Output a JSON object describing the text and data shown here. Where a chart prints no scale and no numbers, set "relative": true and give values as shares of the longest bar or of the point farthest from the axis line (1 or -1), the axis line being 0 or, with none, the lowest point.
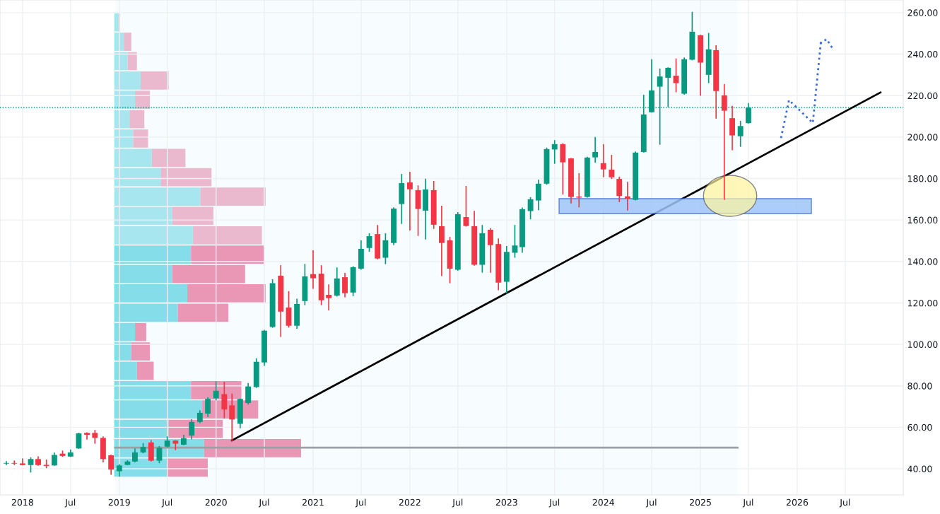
{
  "chart_data": [
    {
      "type": "candlestick",
      "x": [
        "2017-11",
        "2017-12",
        "2018-01",
        "2018-02",
        "2018-03",
        "2018-04",
        "2018-05",
        "2018-06",
        "2018-07",
        "2018-08",
        "2018-09",
        "2018-10",
        "2018-11",
        "2018-12",
        "2019-01",
        "2019-02",
        "2019-03",
        "2019-04",
        "2019-05",
        "2019-06",
        "2019-07",
        "2019-08",
        "2019-09",
        "2019-10",
        "2019-11",
        "2019-12",
        "2020-01",
        "2020-02",
        "2020-03",
        "2020-04",
        "2020-05",
        "2020-06",
        "2020-07",
        "2020-08",
        "2020-09",
        "2020-10",
        "2020-11",
        "2020-12",
        "2021-01",
        "2021-02",
        "2021-03",
        "2021-04",
        "2021-05",
        "2021-06",
        "2021-07",
        "2021-08",
        "2021-09",
        "2021-10",
        "2021-11",
        "2021-12",
        "2022-01",
        "2022-02",
        "2022-03",
        "2022-04",
        "2022-05",
        "2022-06",
        "2022-07",
        "2022-08",
        "2022-09",
        "2022-10",
        "2022-11",
        "2022-12",
        "2023-01",
        "2023-02",
        "2023-03",
        "2023-04",
        "2023-05",
        "2023-06",
        "2023-07",
        "2023-08",
        "2023-09",
        "2023-10",
        "2023-11",
        "2023-12",
        "2024-01",
        "2024-02",
        "2024-03",
        "2024-04",
        "2024-05",
        "2024-06",
        "2024-07",
        "2024-08",
        "2024-09",
        "2024-10",
        "2024-11",
        "2024-12",
        "2025-01",
        "2025-02",
        "2025-03",
        "2025-04",
        "2025-05",
        "2025-06",
        "2025-07"
      ],
      "ohlc": [
        [
          42.5,
          43.7,
          41.8,
          42.8
        ],
        [
          42.8,
          44.0,
          41.8,
          42.5
        ],
        [
          42.6,
          45.0,
          41.6,
          41.8
        ],
        [
          41.8,
          45.5,
          38.2,
          44.7
        ],
        [
          44.7,
          46.0,
          41.5,
          41.8
        ],
        [
          41.9,
          44.5,
          40.3,
          41.4
        ],
        [
          41.6,
          47.9,
          41.5,
          46.7
        ],
        [
          47.3,
          48.8,
          45.8,
          46.2
        ],
        [
          45.9,
          49.3,
          45.7,
          47.9
        ],
        [
          49.8,
          57.4,
          49.6,
          57.1
        ],
        [
          57.3,
          57.6,
          54.1,
          56.4
        ],
        [
          57.3,
          58.7,
          52.1,
          54.9
        ],
        [
          54.9,
          55.6,
          43.1,
          44.7
        ],
        [
          46.5,
          46.8,
          37.1,
          39.6
        ],
        [
          38.8,
          42.2,
          36.2,
          41.6
        ],
        [
          41.9,
          44.1,
          41.7,
          43.5
        ],
        [
          43.5,
          49.8,
          43.1,
          47.9
        ],
        [
          47.9,
          52.4,
          47.5,
          50.5
        ],
        [
          52.7,
          53.8,
          43.5,
          43.9
        ],
        [
          43.9,
          51.0,
          42.7,
          50.1
        ],
        [
          50.7,
          55.6,
          50.3,
          53.6
        ],
        [
          53.6,
          53.8,
          49.0,
          52.1
        ],
        [
          51.6,
          56.4,
          51.4,
          54.7
        ],
        [
          56.0,
          63.9,
          54.2,
          62.6
        ],
        [
          62.6,
          68.2,
          62.0,
          67.0
        ],
        [
          66.6,
          74.5,
          65.0,
          73.7
        ],
        [
          74.0,
          82.2,
          73.0,
          77.6
        ],
        [
          76.0,
          82.0,
          64.3,
          68.6
        ],
        [
          70.6,
          76.3,
          53.3,
          63.8
        ],
        [
          61.7,
          73.9,
          59.5,
          73.7
        ],
        [
          71.7,
          81.4,
          71.0,
          79.7
        ],
        [
          79.4,
          93.3,
          79.0,
          91.6
        ],
        [
          91.3,
          107.0,
          89.6,
          106.6
        ],
        [
          108.4,
          131.4,
          108.0,
          129.5
        ],
        [
          133.1,
          138.2,
          103.6,
          115.8
        ],
        [
          117.8,
          125.7,
          108.1,
          109.0
        ],
        [
          109.0,
          122.0,
          107.5,
          119.5
        ],
        [
          120.9,
          138.8,
          118.9,
          132.8
        ],
        [
          133.9,
          145.4,
          126.8,
          131.9
        ],
        [
          134.1,
          138.2,
          118.9,
          121.3
        ],
        [
          123.9,
          128.9,
          116.4,
          122.3
        ],
        [
          123.5,
          137.1,
          123.1,
          131.8
        ],
        [
          132.4,
          134.5,
          122.7,
          124.7
        ],
        [
          125.0,
          137.7,
          123.3,
          137.2
        ],
        [
          136.5,
          150.2,
          136.0,
          146.1
        ],
        [
          146.5,
          153.6,
          144.7,
          152.2
        ],
        [
          153.2,
          157.6,
          141.0,
          141.4
        ],
        [
          141.8,
          153.6,
          138.7,
          150.2
        ],
        [
          148.9,
          166.1,
          147.9,
          165.5
        ],
        [
          167.7,
          182.2,
          158.1,
          177.8
        ],
        [
          178.1,
          183.2,
          154.9,
          174.8
        ],
        [
          174.4,
          176.7,
          152.3,
          165.3
        ],
        [
          164.5,
          179.9,
          150.6,
          174.7
        ],
        [
          174.4,
          178.8,
          155.7,
          157.7
        ],
        [
          157.0,
          166.9,
          132.9,
          148.9
        ],
        [
          150.2,
          151.8,
          129.5,
          136.5
        ],
        [
          136.0,
          163.8,
          135.5,
          162.8
        ],
        [
          161.4,
          176.4,
          156.8,
          157.1
        ],
        [
          157.0,
          164.4,
          138.0,
          138.4
        ],
        [
          138.4,
          157.6,
          134.6,
          153.6
        ],
        [
          155.3,
          156.0,
          134.6,
          147.9
        ],
        [
          148.4,
          151.1,
          126.1,
          129.8
        ],
        [
          130.2,
          147.4,
          124.6,
          144.6
        ],
        [
          144.2,
          157.6,
          141.8,
          147.7
        ],
        [
          146.9,
          166.0,
          144.2,
          165.2
        ],
        [
          164.3,
          171.0,
          160.3,
          170.0
        ],
        [
          169.4,
          179.5,
          164.7,
          177.5
        ],
        [
          177.5,
          194.9,
          177.0,
          194.2
        ],
        [
          194.0,
          198.5,
          187.1,
          196.6
        ],
        [
          196.6,
          197.0,
          172.3,
          187.8
        ],
        [
          189.7,
          189.9,
          168.0,
          171.1
        ],
        [
          171.3,
          182.6,
          166.1,
          170.8
        ],
        [
          171.1,
          190.5,
          170.8,
          190.1
        ],
        [
          190.2,
          200.0,
          187.7,
          192.8
        ],
        [
          187.4,
          196.6,
          180.6,
          184.4
        ],
        [
          184.3,
          191.4,
          179.8,
          180.6
        ],
        [
          179.8,
          180.9,
          168.6,
          171.6
        ],
        [
          171.4,
          178.4,
          164.6,
          170.3
        ],
        [
          169.7,
          193.0,
          169.4,
          192.5
        ],
        [
          192.8,
          220.4,
          192.5,
          210.9
        ],
        [
          212.0,
          237.5,
          211.8,
          222.5
        ],
        [
          224.3,
          233.0,
          196.3,
          229.2
        ],
        [
          228.6,
          233.6,
          214.4,
          233.4
        ],
        [
          229.6,
          237.9,
          221.6,
          226.0
        ],
        [
          220.9,
          238.4,
          220.4,
          237.5
        ],
        [
          237.3,
          260.4,
          237.0,
          250.8
        ],
        [
          249.1,
          249.3,
          219.9,
          235.9
        ],
        [
          230.0,
          250.2,
          226.0,
          242.3
        ],
        [
          241.9,
          244.3,
          208.9,
          222.2
        ],
        [
          220.1,
          225.6,
          169.7,
          212.7
        ],
        [
          209.1,
          215.0,
          193.6,
          200.8
        ],
        [
          200.4,
          207.8,
          195.3,
          205.3
        ],
        [
          206.7,
          216.4,
          206.5,
          214.2
        ]
      ],
      "colors": [
        "#089981",
        "#f23645",
        "#f23645",
        "#089981",
        "#f23645",
        "#f23645",
        "#089981",
        "#f23645",
        "#089981",
        "#089981",
        "#f23645",
        "#f23645",
        "#f23645",
        "#f23645",
        "#089981",
        "#089981",
        "#089981",
        "#089981",
        "#f23645",
        "#089981",
        "#089981",
        "#f23645",
        "#089981",
        "#089981",
        "#089981",
        "#089981",
        "#089981",
        "#f23645",
        "#f23645",
        "#089981",
        "#089981",
        "#089981",
        "#089981",
        "#089981",
        "#f23645",
        "#f23645",
        "#089981",
        "#089981",
        "#f23645",
        "#f23645",
        "#f23645",
        "#089981",
        "#f23645",
        "#089981",
        "#089981",
        "#089981",
        "#f23645",
        "#089981",
        "#089981",
        "#089981",
        "#f23645",
        "#f23645",
        "#089981",
        "#f23645",
        "#f23645",
        "#f23645",
        "#089981",
        "#f23645",
        "#f23645",
        "#089981",
        "#f23645",
        "#f23645",
        "#089981",
        "#089981",
        "#089981",
        "#089981",
        "#089981",
        "#089981",
        "#089981",
        "#f23645",
        "#f23645",
        "#f23645",
        "#089981",
        "#089981",
        "#f23645",
        "#f23645",
        "#f23645",
        "#f23645",
        "#089981",
        "#089981",
        "#089981",
        "#089981",
        "#089981",
        "#f23645",
        "#089981",
        "#089981",
        "#f23645",
        "#089981",
        "#f23645",
        "#f23645",
        "#f23645",
        "#089981",
        "#089981"
      ],
      "series": [
        {
          "type": "line",
          "color": "#9aa0a6",
          "x": [
            "2018-12-16",
            "2025-05-21"
          ],
          "values": [
            50.2,
            50.2
          ]
        },
        {
          "type": "line",
          "color": "#000000",
          "x": [
            "2020-03-01",
            "2026-11-11"
          ],
          "values": [
            53.7,
            221.5
          ]
        },
        {
          "type": "line",
          "color": "#3d6bd6",
          "line_style": "dotted",
          "x": [
            "2025-11-01",
            "2025-12-01",
            "2026-03-01",
            "2026-04-01"
          ],
          "values": [
            199.5,
            217.8,
            206.8,
            246.8
          ]
        }
      ],
      "xlim": [
        "2017-10-08",
        "2027-02-05"
      ],
      "ylim": [
        27.4,
        266.1
      ],
      "xticks": [
        {
          "value": "2018",
          "label": "2018"
        },
        {
          "value": "2018-07",
          "label": "Jul"
        },
        {
          "value": "2019",
          "label": "2019"
        },
        {
          "value": "2019-07",
          "label": "Jul"
        },
        {
          "value": "2020",
          "label": "2020"
        },
        {
          "value": "2020-07",
          "label": "Jul"
        },
        {
          "value": "2021",
          "label": "2021"
        },
        {
          "value": "2021-07",
          "label": "Jul"
        },
        {
          "value": "2022",
          "label": "2022"
        },
        {
          "value": "2022-07",
          "label": "Jul"
        },
        {
          "value": "2023",
          "label": "2023"
        },
        {
          "value": "2023-07",
          "label": "Jul"
        },
        {
          "value": "2024",
          "label": "2024"
        },
        {
          "value": "2024-07",
          "label": "Jul"
        },
        {
          "value": "2025",
          "label": "2025"
        },
        {
          "value": "2025-07",
          "label": "Jul"
        },
        {
          "value": "2026",
          "label": "2026"
        },
        {
          "value": "2026-07",
          "label": "Jul"
        }
      ],
      "yticks": [
        {
          "value": 40,
          "label": "40.00"
        },
        {
          "value": 60,
          "label": "60.00"
        },
        {
          "value": 80,
          "label": "80.00"
        },
        {
          "value": 100,
          "label": "100.00"
        },
        {
          "value": 120,
          "label": "120.00"
        },
        {
          "value": 140,
          "label": "140.00"
        },
        {
          "value": 160,
          "label": "160.00"
        },
        {
          "value": 180,
          "label": "180.00"
        },
        {
          "value": 200,
          "label": "200.00"
        },
        {
          "value": 220,
          "label": "220.00"
        },
        {
          "value": 240,
          "label": "240.00"
        },
        {
          "value": 260,
          "label": "260.00"
        }
      ],
      "grid": true,
      "ref_lines": [
        {
          "axis": "y",
          "value": 214.2,
          "color": "#089981",
          "line_style": "dotted"
        }
      ],
      "bands": [
        {
          "axis": "x",
          "from": "2018-12-16",
          "to": "2025-05-21",
          "color": "#e6f6fb"
        }
      ]
    },
    {
      "type": "bar",
      "orientation": "horizontal",
      "stacked": true,
      "relative": true,
      "categories": [
        null,
        null,
        null,
        null,
        null,
        null,
        null,
        null,
        null,
        null,
        null,
        null,
        null,
        null,
        null,
        null,
        null,
        null,
        null,
        null,
        null,
        null,
        null,
        null
      ],
      "series": [
        {
          "values": [
            0.02,
            0.05,
            0.07,
            0.14,
            0.11,
            0.08,
            0.1,
            0.2,
            0.25,
            0.46,
            0.31,
            0.42,
            0.41,
            0.31,
            0.39,
            0.34,
            0.11,
            0.09,
            0.12,
            0.41,
            0.47,
            0.29,
            0.48,
            0.28
          ],
          "colors": [
            "#8fe0ea",
            "#8fe0ea",
            "#8fe0ea",
            "#8fe0ea",
            "#8fe0ea",
            "#8fe0ea",
            "#8fe0ea",
            "#8fe0ea",
            "#8fe0ea",
            "#8fe0ea",
            "#8fe0ea",
            "#8fe0ea",
            "#5bd3e1",
            "#5bd3e1",
            "#5bd3e1",
            "#5bd3e1",
            "#5bd3e1",
            "#5bd3e1",
            "#5bd3e1",
            "#5bd3e1",
            "#5bd3e1",
            "#5bd3e1",
            "#5bd3e1",
            "#5bd3e1"
          ]
        },
        {
          "values": [
            0.01,
            0.04,
            0.05,
            0.15,
            0.08,
            0.08,
            0.08,
            0.18,
            0.27,
            0.35,
            0.22,
            0.37,
            0.39,
            0.39,
            0.42,
            0.27,
            0.06,
            0.1,
            0.09,
            0.27,
            0.3,
            0.29,
            0.52,
            0.22
          ],
          "colors": [
            "#eda0bb",
            "#eda0bb",
            "#eda0bb",
            "#eda0bb",
            "#eda0bb",
            "#eda0bb",
            "#eda0bb",
            "#eda0bb",
            "#eda0bb",
            "#eda0bb",
            "#eda0bb",
            "#eda0bb",
            "#ec6f99",
            "#ec6f99",
            "#ec6f99",
            "#ec6f99",
            "#ec6f99",
            "#ec6f99",
            "#ec6f99",
            "#ec6f99",
            "#ec6f99",
            "#ec6f99",
            "#ec6f99",
            "#ec6f99"
          ]
        }
      ]
    }
  ]
}
